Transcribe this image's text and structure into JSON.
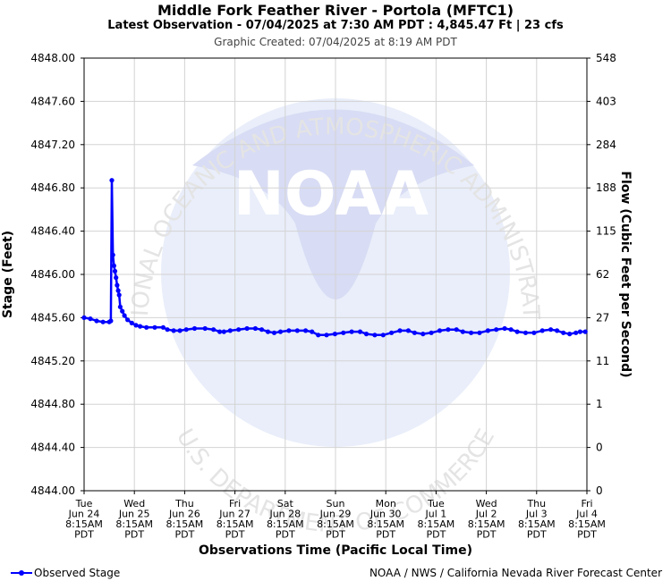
{
  "header": {
    "title": "Middle Fork Feather River - Portola (MFTC1)",
    "subtitle": "Latest Observation - 07/04/2025 at 7:30 AM PDT : 4,845.47 Ft | 23 cfs",
    "created": "Graphic Created: 07/04/2025 at 8:19 AM PDT"
  },
  "footer": {
    "legend_label": "Observed Stage",
    "credit": "NOAA / NWS / California Nevada River Forecast Center"
  },
  "watermark": {
    "logo_text": "NOAA",
    "ring_top": "NATIONAL OCEANIC AND ATMOSPHERIC ADMINISTRATION",
    "ring_bottom": "U.S. DEPARTMENT OF COMMERCE"
  },
  "colors": {
    "series": "#0000ff",
    "grid": "#d3d3d3",
    "watermark": "#e6eaf6"
  },
  "chart_data": {
    "type": "line",
    "xlabel": "Observations Time (Pacific Local Time)",
    "ylabel": "Stage (Feet)",
    "y2label": "Flow (Cubic Feet per Second)",
    "ylim": [
      4844.0,
      4848.0
    ],
    "xlim": [
      "2025-06-24T08:15",
      "2025-07-04T08:15"
    ],
    "grid": true,
    "legend_position": "bottom-left",
    "y_ticks": [
      "4844.00",
      "4844.40",
      "4844.80",
      "4845.20",
      "4845.60",
      "4846.00",
      "4846.40",
      "4846.80",
      "4847.20",
      "4847.60",
      "4848.00"
    ],
    "y2_ticks": [
      "0",
      "0",
      "1",
      "11",
      "27",
      "62",
      "115",
      "188",
      "284",
      "403",
      "548"
    ],
    "x_ticks": [
      {
        "day": "Tue",
        "date": "Jun 24",
        "time": "8:15AM",
        "tz": "PDT"
      },
      {
        "day": "Wed",
        "date": "Jun 25",
        "time": "8:15AM",
        "tz": "PDT"
      },
      {
        "day": "Thu",
        "date": "Jun 26",
        "time": "8:15AM",
        "tz": "PDT"
      },
      {
        "day": "Fri",
        "date": "Jun 27",
        "time": "8:15AM",
        "tz": "PDT"
      },
      {
        "day": "Sat",
        "date": "Jun 28",
        "time": "8:15AM",
        "tz": "PDT"
      },
      {
        "day": "Sun",
        "date": "Jun 29",
        "time": "8:15AM",
        "tz": "PDT"
      },
      {
        "day": "Mon",
        "date": "Jun 30",
        "time": "8:15AM",
        "tz": "PDT"
      },
      {
        "day": "Tue",
        "date": "Jul 1",
        "time": "8:15AM",
        "tz": "PDT"
      },
      {
        "day": "Wed",
        "date": "Jul 2",
        "time": "8:15AM",
        "tz": "PDT"
      },
      {
        "day": "Thu",
        "date": "Jul 3",
        "time": "8:15AM",
        "tz": "PDT"
      },
      {
        "day": "Fri",
        "date": "Jul 4",
        "time": "8:15AM",
        "tz": "PDT"
      }
    ],
    "series": [
      {
        "name": "Observed Stage",
        "points": [
          [
            "2025-06-24T08:15",
            4845.6
          ],
          [
            "2025-06-24T11:15",
            4845.59
          ],
          [
            "2025-06-24T14:15",
            4845.57
          ],
          [
            "2025-06-24T17:15",
            4845.56
          ],
          [
            "2025-06-24T20:15",
            4845.56
          ],
          [
            "2025-06-24T21:00",
            4845.57
          ],
          [
            "2025-06-24T21:30",
            4846.87
          ],
          [
            "2025-06-24T22:00",
            4846.18
          ],
          [
            "2025-06-24T22:30",
            4846.08
          ],
          [
            "2025-06-24T23:00",
            4846.03
          ],
          [
            "2025-06-24T23:30",
            4845.97
          ],
          [
            "2025-06-25T00:00",
            4845.9
          ],
          [
            "2025-06-25T00:30",
            4845.85
          ],
          [
            "2025-06-25T01:00",
            4845.81
          ],
          [
            "2025-06-25T01:30",
            4845.7
          ],
          [
            "2025-06-25T02:30",
            4845.66
          ],
          [
            "2025-06-25T03:30",
            4845.62
          ],
          [
            "2025-06-25T05:00",
            4845.58
          ],
          [
            "2025-06-25T07:00",
            4845.55
          ],
          [
            "2025-06-25T09:00",
            4845.53
          ],
          [
            "2025-06-25T11:00",
            4845.52
          ],
          [
            "2025-06-25T14:00",
            4845.51
          ],
          [
            "2025-06-25T18:00",
            4845.51
          ],
          [
            "2025-06-25T22:00",
            4845.51
          ],
          [
            "2025-06-26T00:00",
            4845.49
          ],
          [
            "2025-06-26T03:00",
            4845.48
          ],
          [
            "2025-06-26T06:00",
            4845.48
          ],
          [
            "2025-06-26T09:00",
            4845.49
          ],
          [
            "2025-06-26T13:00",
            4845.5
          ],
          [
            "2025-06-26T18:00",
            4845.5
          ],
          [
            "2025-06-26T22:00",
            4845.49
          ],
          [
            "2025-06-27T01:00",
            4845.47
          ],
          [
            "2025-06-27T03:00",
            4845.47
          ],
          [
            "2025-06-27T06:00",
            4845.48
          ],
          [
            "2025-06-27T10:00",
            4845.49
          ],
          [
            "2025-06-27T14:00",
            4845.5
          ],
          [
            "2025-06-27T18:00",
            4845.5
          ],
          [
            "2025-06-27T21:00",
            4845.49
          ],
          [
            "2025-06-28T00:00",
            4845.47
          ],
          [
            "2025-06-28T03:00",
            4845.46
          ],
          [
            "2025-06-28T06:00",
            4845.47
          ],
          [
            "2025-06-28T10:00",
            4845.48
          ],
          [
            "2025-06-28T14:00",
            4845.48
          ],
          [
            "2025-06-28T18:00",
            4845.48
          ],
          [
            "2025-06-28T21:00",
            4845.47
          ],
          [
            "2025-06-29T00:00",
            4845.44
          ],
          [
            "2025-06-29T04:00",
            4845.44
          ],
          [
            "2025-06-29T08:00",
            4845.45
          ],
          [
            "2025-06-29T12:00",
            4845.46
          ],
          [
            "2025-06-29T16:00",
            4845.47
          ],
          [
            "2025-06-29T20:00",
            4845.47
          ],
          [
            "2025-06-29T23:00",
            4845.45
          ],
          [
            "2025-06-30T03:00",
            4845.44
          ],
          [
            "2025-06-30T07:00",
            4845.44
          ],
          [
            "2025-06-30T11:00",
            4845.46
          ],
          [
            "2025-06-30T15:00",
            4845.48
          ],
          [
            "2025-06-30T19:00",
            4845.48
          ],
          [
            "2025-06-30T22:00",
            4845.46
          ],
          [
            "2025-07-01T02:00",
            4845.45
          ],
          [
            "2025-07-01T06:00",
            4845.46
          ],
          [
            "2025-07-01T10:00",
            4845.48
          ],
          [
            "2025-07-01T14:00",
            4845.49
          ],
          [
            "2025-07-01T18:00",
            4845.49
          ],
          [
            "2025-07-01T21:00",
            4845.47
          ],
          [
            "2025-07-02T01:00",
            4845.46
          ],
          [
            "2025-07-02T05:00",
            4845.46
          ],
          [
            "2025-07-02T09:00",
            4845.48
          ],
          [
            "2025-07-02T13:00",
            4845.49
          ],
          [
            "2025-07-02T17:00",
            4845.5
          ],
          [
            "2025-07-02T20:00",
            4845.49
          ],
          [
            "2025-07-02T23:00",
            4845.47
          ],
          [
            "2025-07-03T03:00",
            4845.46
          ],
          [
            "2025-07-03T07:00",
            4845.46
          ],
          [
            "2025-07-03T11:00",
            4845.48
          ],
          [
            "2025-07-03T15:00",
            4845.49
          ],
          [
            "2025-07-03T18:00",
            4845.48
          ],
          [
            "2025-07-03T21:00",
            4845.46
          ],
          [
            "2025-07-04T00:00",
            4845.45
          ],
          [
            "2025-07-04T03:00",
            4845.46
          ],
          [
            "2025-07-04T05:00",
            4845.47
          ],
          [
            "2025-07-04T07:30",
            4845.47
          ]
        ]
      }
    ]
  }
}
